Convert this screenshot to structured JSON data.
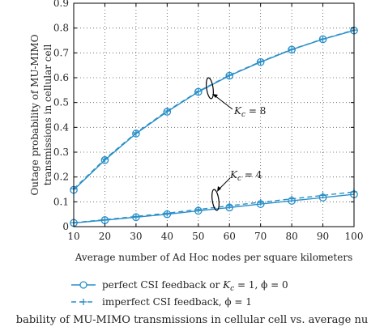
{
  "chart_data": {
    "type": "line",
    "x": [
      10,
      20,
      30,
      40,
      50,
      60,
      70,
      80,
      90,
      100
    ],
    "xlabel": "Average number of Ad Hoc nodes per square kilometers",
    "ylabel_line1": "Outage probability of MU-MIMO",
    "ylabel_line2": "transmissions in cellular cell",
    "xlim": [
      10,
      100
    ],
    "ylim": [
      0,
      0.9
    ],
    "xticks": [
      "10",
      "20",
      "30",
      "40",
      "50",
      "60",
      "70",
      "80",
      "90",
      "100"
    ],
    "yticks": [
      "0",
      "0.1",
      "0.2",
      "0.3",
      "0.4",
      "0.5",
      "0.6",
      "0.7",
      "0.8",
      "0.9"
    ],
    "grid": true,
    "colors": {
      "series": "#2a8fc8",
      "axis": "#000000",
      "grid": "#555555"
    },
    "series": [
      {
        "name": "perfect CSI feedback or K_c = 1, ϕ = 0",
        "group": "Kc8",
        "style": "solid-circle",
        "values": [
          0.148,
          0.268,
          0.375,
          0.463,
          0.543,
          0.608,
          0.663,
          0.713,
          0.755,
          0.79
        ]
      },
      {
        "name": "imperfect CSI feedback, ϕ = 1",
        "group": "Kc8",
        "style": "dashed-plus",
        "values": [
          0.152,
          0.272,
          0.378,
          0.466,
          0.545,
          0.61,
          0.665,
          0.714,
          0.756,
          0.792
        ]
      },
      {
        "name": "perfect CSI feedback or K_c = 1, ϕ = 0",
        "group": "Kc4",
        "style": "solid-circle",
        "values": [
          0.015,
          0.026,
          0.038,
          0.05,
          0.064,
          0.077,
          0.091,
          0.104,
          0.117,
          0.13
        ]
      },
      {
        "name": "imperfect CSI feedback, ϕ = 1",
        "group": "Kc4",
        "style": "dashed-plus",
        "values": [
          0.016,
          0.028,
          0.041,
          0.054,
          0.069,
          0.084,
          0.098,
          0.112,
          0.126,
          0.14
        ]
      }
    ],
    "annotations": [
      {
        "prefix": "K",
        "sub": "c",
        "suffix": " = 8"
      },
      {
        "prefix": "K",
        "sub": "c",
        "suffix": " = 4"
      }
    ],
    "legend": [
      {
        "style": "solid-circle",
        "text1": "perfect CSI feedback or ",
        "k": "K",
        "sub": "c",
        "text2": " = 1, ϕ = 0"
      },
      {
        "style": "dashed-plus",
        "text1": "imperfect CSI feedback, ϕ = 1"
      }
    ],
    "legend_position": "bottom"
  },
  "caption": "bability of MU-MIMO transmissions in cellular cell vs. average nu"
}
